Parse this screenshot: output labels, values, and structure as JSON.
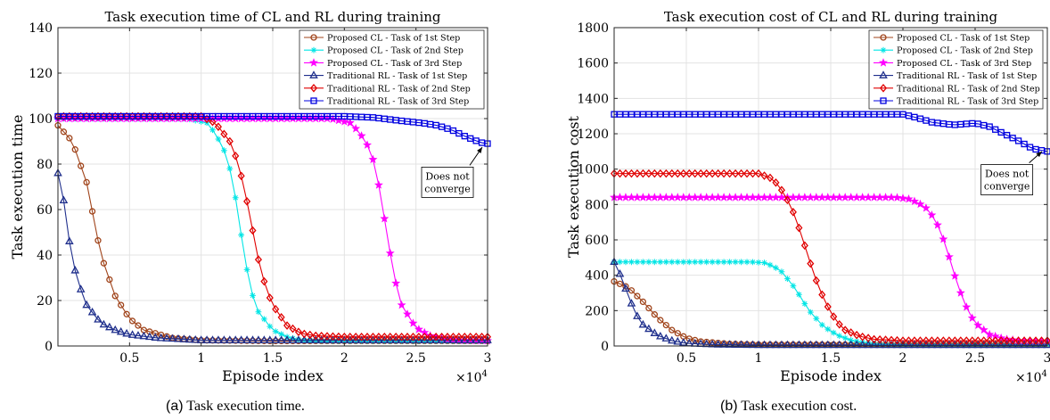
{
  "chart_data": [
    {
      "type": "line",
      "title": "Task execution time of CL and RL during training",
      "xlabel": "Episode index",
      "ylabel": "Task execution time",
      "x_multiplier_label": "×10",
      "x_multiplier_exp": "4",
      "xlim": [
        0,
        30000
      ],
      "ylim": [
        0,
        140
      ],
      "xticks": [
        5000,
        10000,
        15000,
        20000,
        25000,
        30000
      ],
      "xtick_labels": [
        "0.5",
        "1",
        "1.5",
        "2",
        "2.5",
        "3"
      ],
      "yticks": [
        0,
        20,
        40,
        60,
        80,
        100,
        120,
        140
      ],
      "ytick_labels": [
        "0",
        "20",
        "40",
        "60",
        "80",
        "100",
        "120",
        "140"
      ],
      "grid": true,
      "legend_position": "top-right",
      "annotation": {
        "lines": [
          "Does not",
          "converge"
        ],
        "x": 27200,
        "y": 72,
        "arrow_to": [
          30000,
          89
        ]
      },
      "series": [
        {
          "name": "Proposed CL - Task of 1st Step",
          "color": "#a0441b",
          "marker": "circle",
          "x": [
            0,
            1000,
            2000,
            3000,
            4000,
            5000,
            6000,
            8000,
            10000,
            15000,
            20000,
            25000,
            30000
          ],
          "y": [
            97,
            90,
            72,
            40,
            22,
            12,
            7,
            3.5,
            2.5,
            2.2,
            2.2,
            2.2,
            2.2
          ]
        },
        {
          "name": "Proposed CL - Task of 2nd Step",
          "color": "#00e5e5",
          "marker": "asterisk",
          "x": [
            0,
            9000,
            10500,
            11500,
            12000,
            12500,
            13000,
            13500,
            14000,
            15000,
            16000,
            17000,
            20000,
            25000,
            30000
          ],
          "y": [
            100,
            100,
            98,
            88,
            78,
            62,
            40,
            24,
            15,
            7,
            4,
            2.5,
            2.2,
            2.2,
            2.2
          ]
        },
        {
          "name": "Proposed CL - Task of 3rd Step",
          "color": "#ff00ff",
          "marker": "star",
          "x": [
            0,
            19000,
            20500,
            21500,
            22000,
            22500,
            23000,
            23500,
            24000,
            25000,
            26000,
            27000,
            28000,
            30000
          ],
          "y": [
            100,
            100,
            98,
            90,
            82,
            68,
            48,
            30,
            18,
            8,
            4.5,
            3,
            2.5,
            2.3
          ]
        },
        {
          "name": "Traditional RL - Task of 1st Step",
          "color": "#1f2f8c",
          "marker": "triangle",
          "x": [
            0,
            400,
            800,
            1300,
            2000,
            3000,
            4000,
            5000,
            7000,
            10000,
            15000,
            20000,
            25000,
            30000
          ],
          "y": [
            76,
            64,
            46,
            30,
            18,
            10,
            7,
            5,
            3.5,
            2.5,
            2.5,
            2.5,
            2.5,
            2.5
          ]
        },
        {
          "name": "Traditional RL - Task of 2nd Step",
          "color": "#e00000",
          "marker": "diamond",
          "x": [
            0,
            10000,
            11000,
            12000,
            12500,
            13000,
            13500,
            14000,
            14500,
            15000,
            16000,
            17000,
            18000,
            20000,
            25000,
            30000
          ],
          "y": [
            101,
            101,
            98,
            90,
            82,
            70,
            54,
            38,
            26,
            18,
            9,
            5.5,
            4.5,
            4,
            4,
            4
          ]
        },
        {
          "name": "Traditional RL - Task of 3rd Step",
          "color": "#0000e0",
          "marker": "square",
          "x": [
            0,
            20000,
            22000,
            24000,
            25500,
            26500,
            27500,
            28500,
            29500,
            30000
          ],
          "y": [
            101,
            101,
            100.5,
            99,
            98,
            97,
            95,
            92,
            89.5,
            89
          ]
        }
      ]
    },
    {
      "type": "line",
      "title": "Task execution cost of CL and RL during training",
      "xlabel": "Episode index",
      "ylabel": "Task execution cost",
      "x_multiplier_label": "×10",
      "x_multiplier_exp": "4",
      "xlim": [
        0,
        30000
      ],
      "ylim": [
        0,
        1800
      ],
      "xticks": [
        5000,
        10000,
        15000,
        20000,
        25000,
        30000
      ],
      "xtick_labels": [
        "0.5",
        "1",
        "1.5",
        "2",
        "2.5",
        "3"
      ],
      "yticks": [
        0,
        200,
        400,
        600,
        800,
        1000,
        1200,
        1400,
        1600,
        1800
      ],
      "ytick_labels": [
        "0",
        "200",
        "400",
        "600",
        "800",
        "1000",
        "1200",
        "1400",
        "1600",
        "1800"
      ],
      "grid": true,
      "legend_position": "top-right",
      "annotation": {
        "lines": [
          "Does not",
          "converge"
        ],
        "x": 27200,
        "y": 940,
        "arrow_to": [
          30000,
          1120
        ]
      },
      "series": [
        {
          "name": "Proposed CL - Task of 1st Step",
          "color": "#a0441b",
          "marker": "circle",
          "x": [
            0,
            1000,
            2000,
            3000,
            4000,
            5000,
            6000,
            8000,
            10000,
            15000,
            20000,
            25000,
            30000
          ],
          "y": [
            365,
            330,
            250,
            160,
            90,
            45,
            25,
            12,
            8,
            8,
            8,
            8,
            8
          ]
        },
        {
          "name": "Proposed CL - Task of 2nd Step",
          "color": "#00e5e5",
          "marker": "asterisk",
          "x": [
            0,
            9500,
            10500,
            11500,
            12500,
            13500,
            14500,
            15500,
            16500,
            18000,
            20000,
            25000,
            30000
          ],
          "y": [
            475,
            475,
            470,
            430,
            330,
            200,
            110,
            60,
            30,
            12,
            8,
            8,
            8
          ]
        },
        {
          "name": "Proposed CL - Task of 3rd Step",
          "color": "#ff00ff",
          "marker": "star",
          "x": [
            0,
            19500,
            20500,
            21500,
            22000,
            22500,
            23000,
            23500,
            24000,
            24500,
            25000,
            26000,
            27000,
            28000,
            30000
          ],
          "y": [
            840,
            840,
            830,
            790,
            740,
            670,
            560,
            420,
            300,
            200,
            130,
            65,
            40,
            30,
            25
          ]
        },
        {
          "name": "Traditional RL - Task of 1st Step",
          "color": "#1f2f8c",
          "marker": "triangle",
          "x": [
            0,
            500,
            1000,
            1500,
            2000,
            3000,
            4000,
            5000,
            7000,
            10000,
            15000,
            20000,
            25000,
            30000
          ],
          "y": [
            475,
            390,
            280,
            180,
            120,
            60,
            30,
            15,
            8,
            5,
            5,
            5,
            5,
            5
          ]
        },
        {
          "name": "Traditional RL - Task of 2nd Step",
          "color": "#e00000",
          "marker": "diamond",
          "x": [
            0,
            10000,
            11000,
            11800,
            12500,
            13000,
            13500,
            14000,
            14500,
            15000,
            15500,
            16000,
            17000,
            18000,
            20000,
            25000,
            30000
          ],
          "y": [
            975,
            975,
            945,
            860,
            740,
            620,
            490,
            370,
            270,
            190,
            130,
            90,
            55,
            38,
            30,
            30,
            30
          ]
        },
        {
          "name": "Traditional RL - Task of 3rd Step",
          "color": "#0000e0",
          "marker": "square",
          "x": [
            0,
            20000,
            21000,
            22000,
            23500,
            25000,
            26000,
            27000,
            28000,
            29000,
            30000
          ],
          "y": [
            1310,
            1310,
            1290,
            1265,
            1250,
            1260,
            1240,
            1200,
            1160,
            1115,
            1100
          ]
        }
      ]
    }
  ],
  "captions": [
    {
      "tag": "(a)",
      "text": "Task execution time."
    },
    {
      "tag": "(b)",
      "text": "Task execution cost."
    }
  ]
}
